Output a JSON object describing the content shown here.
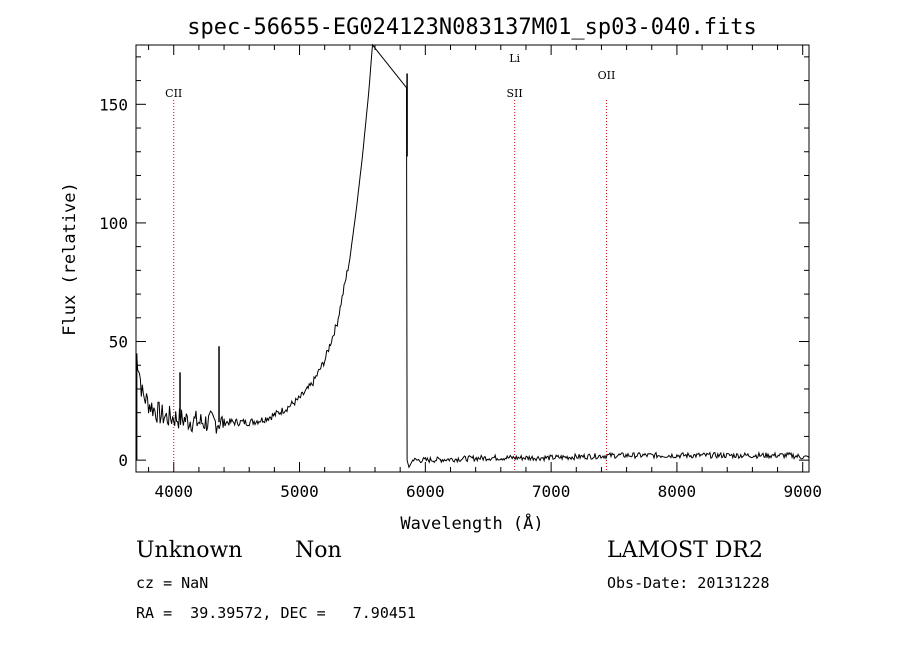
{
  "chart_data": {
    "type": "line",
    "title": "spec-56655-EG024123N083137M01_sp03-040.fits",
    "xlabel": "Wavelength (Å)",
    "ylabel": "Flux (relative)",
    "xlim": [
      3700,
      9050
    ],
    "ylim": [
      -5,
      175
    ],
    "x_ticks": [
      4000,
      5000,
      6000,
      7000,
      8000,
      9000
    ],
    "y_ticks": [
      0,
      50,
      100,
      150
    ],
    "grid": false,
    "line_color": "#000000",
    "marker_color": "#d01010",
    "spectrum_anchor_points": {
      "x": [
        3700,
        3720,
        3750,
        3800,
        3850,
        3900,
        3950,
        4000,
        4100,
        4200,
        4300,
        4400,
        4500,
        4600,
        4700,
        4800,
        4900,
        5000,
        5100,
        5200,
        5300,
        5400,
        5450,
        5500,
        5550,
        5580,
        5850,
        5855,
        5870,
        5900,
        6000,
        6500,
        7000,
        7500,
        8000,
        8500,
        8900,
        9050
      ],
      "y": [
        45,
        40,
        28,
        24,
        21,
        19,
        18,
        18,
        17,
        16,
        16,
        16,
        16,
        16,
        17,
        19,
        22,
        26,
        32,
        42,
        58,
        85,
        105,
        128,
        155,
        175,
        157,
        0,
        -3,
        0,
        0,
        1,
        1,
        2,
        2,
        2,
        2,
        1
      ]
    },
    "spikes": [
      {
        "x": 3705,
        "from": 0,
        "to": 45
      },
      {
        "x": 4050,
        "from": 18,
        "to": 37
      },
      {
        "x": 4360,
        "from": 16,
        "to": 48
      },
      {
        "x": 5855,
        "from": 128,
        "to": 163
      }
    ],
    "line_markers": [
      {
        "label": "CII",
        "x": 4000
      },
      {
        "label": "Li",
        "x": 6710
      },
      {
        "label": "SII",
        "x": 6710
      },
      {
        "label": "OII",
        "x": 7440
      }
    ]
  },
  "info": {
    "class": "Unknown",
    "subclass": "Non",
    "cz": "cz = NaN",
    "radec": "RA =  39.39572, DEC =   7.90451",
    "survey": "LAMOST DR2",
    "obs_date": "Obs-Date: 20131228"
  }
}
